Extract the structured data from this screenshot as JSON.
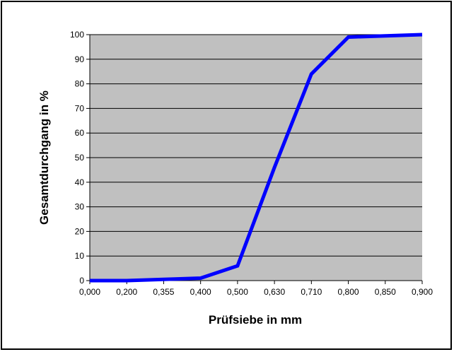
{
  "chart_data": {
    "type": "line",
    "title": "",
    "xlabel": "Prüfsiebe in mm",
    "ylabel": "Gesamtdurchgang in %",
    "categories": [
      "0,000",
      "0,200",
      "0,355",
      "0,400",
      "0,500",
      "0,630",
      "0,710",
      "0,800",
      "0,850",
      "0,900"
    ],
    "series": [
      {
        "values": [
          0,
          0,
          0.5,
          1,
          6,
          46,
          84,
          99,
          99.5,
          100
        ]
      }
    ],
    "ylim": [
      0,
      100
    ],
    "yticks": [
      0,
      10,
      20,
      30,
      40,
      50,
      60,
      70,
      80,
      90,
      100
    ],
    "grid": true,
    "legend": "none",
    "colors": {
      "line": "#0000ff",
      "plot_background": "#c0c0c0",
      "gridline": "#000000",
      "frame": "#000000"
    }
  }
}
